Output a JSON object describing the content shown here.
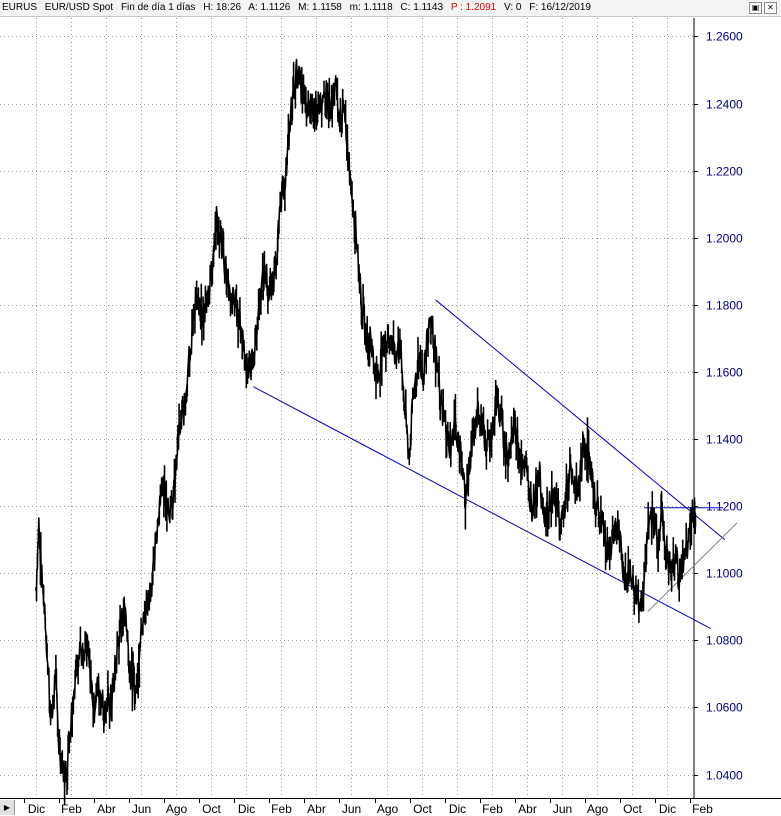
{
  "header": {
    "symbol": "EURUS",
    "description": "EUR/USD Spot",
    "period": "Fin de día 1 días",
    "high": "H: 18:26",
    "ask": "A: 1.1126",
    "max": "M: 1.1158",
    "min": "m: 1.1118",
    "close": "C: 1.1143",
    "p": "P : 1.2091",
    "volume": "V: 0",
    "date": "F: 16/12/2019"
  },
  "window_buttons": [
    "▣",
    "✕"
  ],
  "chart_data": {
    "type": "candlestick-line",
    "series_color": "#000000",
    "y_axis_side": "right",
    "ylim": [
      1.033,
      1.2655
    ],
    "yticks": [
      "1.2600",
      "1.2400",
      "1.2200",
      "1.2000",
      "1.1800",
      "1.1600",
      "1.1400",
      "1.1200",
      "1.1000",
      "1.0800",
      "1.0600",
      "1.0400"
    ],
    "tick_color": "#000080",
    "xticks": [
      "Dic",
      "Feb",
      "Abr",
      "Jun",
      "Ago",
      "Oct",
      "Dic",
      "Feb",
      "Abr",
      "Jun",
      "Ago",
      "Oct",
      "Dic",
      "Feb",
      "Abr",
      "Jun",
      "Ago",
      "Oct",
      "Dic",
      "Feb"
    ],
    "xlim": [
      0,
      19.6
    ],
    "grid": true,
    "price_path": [
      [
        0.0,
        1.095
      ],
      [
        0.08,
        1.115
      ],
      [
        0.15,
        1.1
      ],
      [
        0.25,
        1.09
      ],
      [
        0.35,
        1.07
      ],
      [
        0.45,
        1.055
      ],
      [
        0.55,
        1.07
      ],
      [
        0.65,
        1.05
      ],
      [
        0.75,
        1.043
      ],
      [
        0.85,
        1.038
      ],
      [
        0.95,
        1.052
      ],
      [
        1.05,
        1.062
      ],
      [
        1.15,
        1.072
      ],
      [
        1.25,
        1.08
      ],
      [
        1.35,
        1.072
      ],
      [
        1.45,
        1.078
      ],
      [
        1.55,
        1.07
      ],
      [
        1.65,
        1.06
      ],
      [
        1.75,
        1.066
      ],
      [
        1.85,
        1.065
      ],
      [
        1.95,
        1.058
      ],
      [
        2.05,
        1.062
      ],
      [
        2.15,
        1.06
      ],
      [
        2.25,
        1.07
      ],
      [
        2.35,
        1.08
      ],
      [
        2.45,
        1.086
      ],
      [
        2.55,
        1.09
      ],
      [
        2.65,
        1.075
      ],
      [
        2.75,
        1.068
      ],
      [
        2.85,
        1.065
      ],
      [
        2.95,
        1.073
      ],
      [
        2.9,
        1.073
      ],
      [
        3.05,
        1.085
      ],
      [
        3.15,
        1.09
      ],
      [
        3.25,
        1.095
      ],
      [
        3.35,
        1.1
      ],
      [
        3.45,
        1.112
      ],
      [
        3.55,
        1.125
      ],
      [
        3.65,
        1.126
      ],
      [
        3.75,
        1.122
      ],
      [
        3.85,
        1.118
      ],
      [
        3.95,
        1.125
      ],
      [
        4.05,
        1.14
      ],
      [
        4.15,
        1.145
      ],
      [
        4.25,
        1.15
      ],
      [
        4.35,
        1.165
      ],
      [
        4.45,
        1.17
      ],
      [
        4.55,
        1.182
      ],
      [
        4.65,
        1.178
      ],
      [
        4.75,
        1.175
      ],
      [
        4.85,
        1.18
      ],
      [
        4.95,
        1.186
      ],
      [
        5.05,
        1.195
      ],
      [
        5.15,
        1.205
      ],
      [
        5.25,
        1.2
      ],
      [
        5.35,
        1.195
      ],
      [
        5.45,
        1.188
      ],
      [
        5.55,
        1.18
      ],
      [
        5.65,
        1.182
      ],
      [
        5.75,
        1.177
      ],
      [
        5.85,
        1.174
      ],
      [
        5.95,
        1.166
      ],
      [
        6.05,
        1.16
      ],
      [
        6.15,
        1.162
      ],
      [
        6.25,
        1.168
      ],
      [
        6.35,
        1.178
      ],
      [
        6.45,
        1.186
      ],
      [
        6.55,
        1.19
      ],
      [
        6.65,
        1.182
      ],
      [
        6.75,
        1.185
      ],
      [
        6.85,
        1.195
      ],
      [
        6.95,
        1.205
      ],
      [
        7.05,
        1.215
      ],
      [
        7.15,
        1.22
      ],
      [
        7.25,
        1.235
      ],
      [
        7.35,
        1.245
      ],
      [
        7.45,
        1.25
      ],
      [
        7.55,
        1.245
      ],
      [
        7.65,
        1.242
      ],
      [
        7.75,
        1.236
      ],
      [
        7.85,
        1.24
      ],
      [
        7.95,
        1.238
      ],
      [
        8.05,
        1.242
      ],
      [
        8.15,
        1.235
      ],
      [
        8.25,
        1.245
      ],
      [
        8.35,
        1.24
      ],
      [
        8.45,
        1.238
      ],
      [
        8.55,
        1.245
      ],
      [
        8.65,
        1.235
      ],
      [
        8.75,
        1.238
      ],
      [
        8.85,
        1.232
      ],
      [
        8.95,
        1.22
      ],
      [
        9.05,
        1.21
      ],
      [
        9.15,
        1.2
      ],
      [
        9.25,
        1.185
      ],
      [
        9.35,
        1.175
      ],
      [
        9.45,
        1.168
      ],
      [
        9.55,
        1.17
      ],
      [
        9.65,
        1.162
      ],
      [
        9.75,
        1.158
      ],
      [
        9.85,
        1.165
      ],
      [
        9.95,
        1.168
      ],
      [
        10.05,
        1.172
      ],
      [
        10.15,
        1.168
      ],
      [
        10.25,
        1.165
      ],
      [
        10.35,
        1.17
      ],
      [
        10.45,
        1.16
      ],
      [
        10.55,
        1.145
      ],
      [
        10.65,
        1.135
      ],
      [
        10.75,
        1.15
      ],
      [
        10.85,
        1.16
      ],
      [
        10.95,
        1.165
      ],
      [
        11.05,
        1.158
      ],
      [
        11.15,
        1.168
      ],
      [
        11.25,
        1.178
      ],
      [
        11.35,
        1.17
      ],
      [
        11.45,
        1.16
      ],
      [
        11.55,
        1.15
      ],
      [
        11.65,
        1.145
      ],
      [
        11.75,
        1.14
      ],
      [
        11.85,
        1.138
      ],
      [
        11.95,
        1.145
      ],
      [
        12.05,
        1.14
      ],
      [
        12.15,
        1.133
      ],
      [
        12.25,
        1.122
      ],
      [
        12.35,
        1.13
      ],
      [
        12.45,
        1.138
      ],
      [
        12.55,
        1.145
      ],
      [
        12.65,
        1.15
      ],
      [
        12.75,
        1.142
      ],
      [
        12.85,
        1.138
      ],
      [
        12.95,
        1.14
      ],
      [
        13.05,
        1.145
      ],
      [
        13.15,
        1.152
      ],
      [
        13.25,
        1.146
      ],
      [
        13.35,
        1.14
      ],
      [
        13.45,
        1.135
      ],
      [
        13.55,
        1.138
      ],
      [
        13.65,
        1.145
      ],
      [
        13.75,
        1.14
      ],
      [
        13.85,
        1.134
      ],
      [
        13.95,
        1.132
      ],
      [
        14.05,
        1.125
      ],
      [
        14.15,
        1.12
      ],
      [
        14.25,
        1.125
      ],
      [
        14.35,
        1.13
      ],
      [
        14.45,
        1.122
      ],
      [
        14.55,
        1.116
      ],
      [
        14.65,
        1.12
      ],
      [
        14.75,
        1.125
      ],
      [
        14.85,
        1.12
      ],
      [
        14.95,
        1.115
      ],
      [
        15.05,
        1.118
      ],
      [
        15.15,
        1.125
      ],
      [
        15.25,
        1.13
      ],
      [
        15.35,
        1.124
      ],
      [
        15.45,
        1.126
      ],
      [
        15.55,
        1.13
      ],
      [
        15.65,
        1.14
      ],
      [
        15.75,
        1.136
      ],
      [
        15.85,
        1.128
      ],
      [
        15.95,
        1.122
      ],
      [
        16.05,
        1.118
      ],
      [
        16.15,
        1.115
      ],
      [
        16.25,
        1.11
      ],
      [
        16.35,
        1.105
      ],
      [
        16.45,
        1.11
      ],
      [
        16.55,
        1.115
      ],
      [
        16.65,
        1.11
      ],
      [
        16.75,
        1.1
      ],
      [
        16.85,
        1.098
      ],
      [
        16.95,
        1.102
      ],
      [
        17.05,
        1.095
      ],
      [
        17.15,
        1.093
      ],
      [
        17.25,
        1.09
      ],
      [
        17.35,
        1.098
      ],
      [
        17.45,
        1.11
      ],
      [
        17.55,
        1.118
      ],
      [
        17.65,
        1.115
      ],
      [
        17.75,
        1.11
      ],
      [
        17.85,
        1.118
      ],
      [
        17.95,
        1.108
      ],
      [
        18.05,
        1.102
      ],
      [
        18.15,
        1.1
      ],
      [
        18.25,
        1.105
      ],
      [
        18.35,
        1.1
      ],
      [
        18.45,
        1.103
      ],
      [
        18.55,
        1.106
      ],
      [
        18.65,
        1.112
      ],
      [
        18.7,
        1.118
      ],
      [
        18.78,
        1.119
      ],
      [
        18.82,
        1.114
      ]
    ],
    "trendlines": [
      {
        "color": "#0000c0",
        "points": [
          [
            6.2,
            1.1556
          ],
          [
            19.25,
            1.0835
          ]
        ]
      },
      {
        "color": "#0000c0",
        "points": [
          [
            11.4,
            1.1815
          ],
          [
            19.65,
            1.11
          ]
        ]
      },
      {
        "color": "#0000c0",
        "points": [
          [
            17.35,
            1.1195
          ],
          [
            19.6,
            1.1195
          ]
        ]
      },
      {
        "color": "#808080",
        "points": [
          [
            17.45,
            1.0885
          ],
          [
            20.0,
            1.115
          ]
        ]
      }
    ]
  }
}
